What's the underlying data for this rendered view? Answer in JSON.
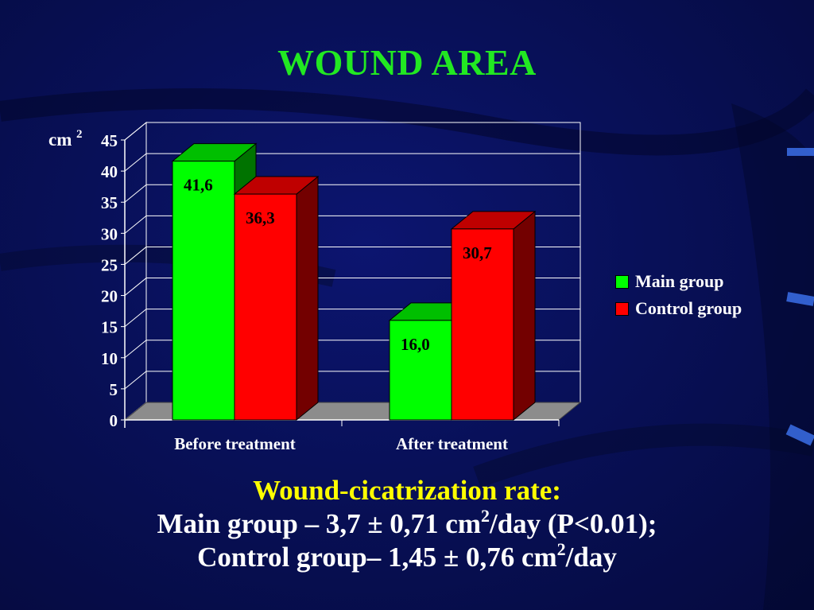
{
  "slide": {
    "title": "WOUND AREA",
    "rate_heading": "Wound-cicatrization rate:",
    "main_rate": {
      "label": "Main group",
      "sep": " – ",
      "value": "3,7 ± 0,71 cm",
      "sup": "2",
      "suffix": "/day (P<0.01);"
    },
    "control_rate": {
      "label": "Control group",
      "sep": "– ",
      "value": "1,45 ± 0,76 cm",
      "sup": "2",
      "suffix": "/day"
    }
  },
  "colors": {
    "background": "#081058",
    "title": "#22e822",
    "rate_heading": "#ffff00",
    "main_group": "#00ff00",
    "control_group": "#ff0000",
    "floor": "#8c8c8c"
  },
  "chart_data": {
    "type": "bar",
    "title": "",
    "unit_label": "cm",
    "unit_sup": "2",
    "categories": [
      "Before treatment",
      "After treatment"
    ],
    "series": [
      {
        "name": "Main group",
        "values": [
          41.6,
          16.0
        ],
        "labels": [
          "41,6",
          "16,0"
        ],
        "color": "#00ff00"
      },
      {
        "name": "Control group",
        "values": [
          36.3,
          30.7
        ],
        "labels": [
          "36,3",
          "30,7"
        ],
        "color": "#ff0000"
      }
    ],
    "ylim": [
      0,
      45
    ],
    "yticks": [
      0,
      5,
      10,
      15,
      20,
      25,
      30,
      35,
      40,
      45
    ],
    "grid": true,
    "three_d": true,
    "legend": "right"
  }
}
